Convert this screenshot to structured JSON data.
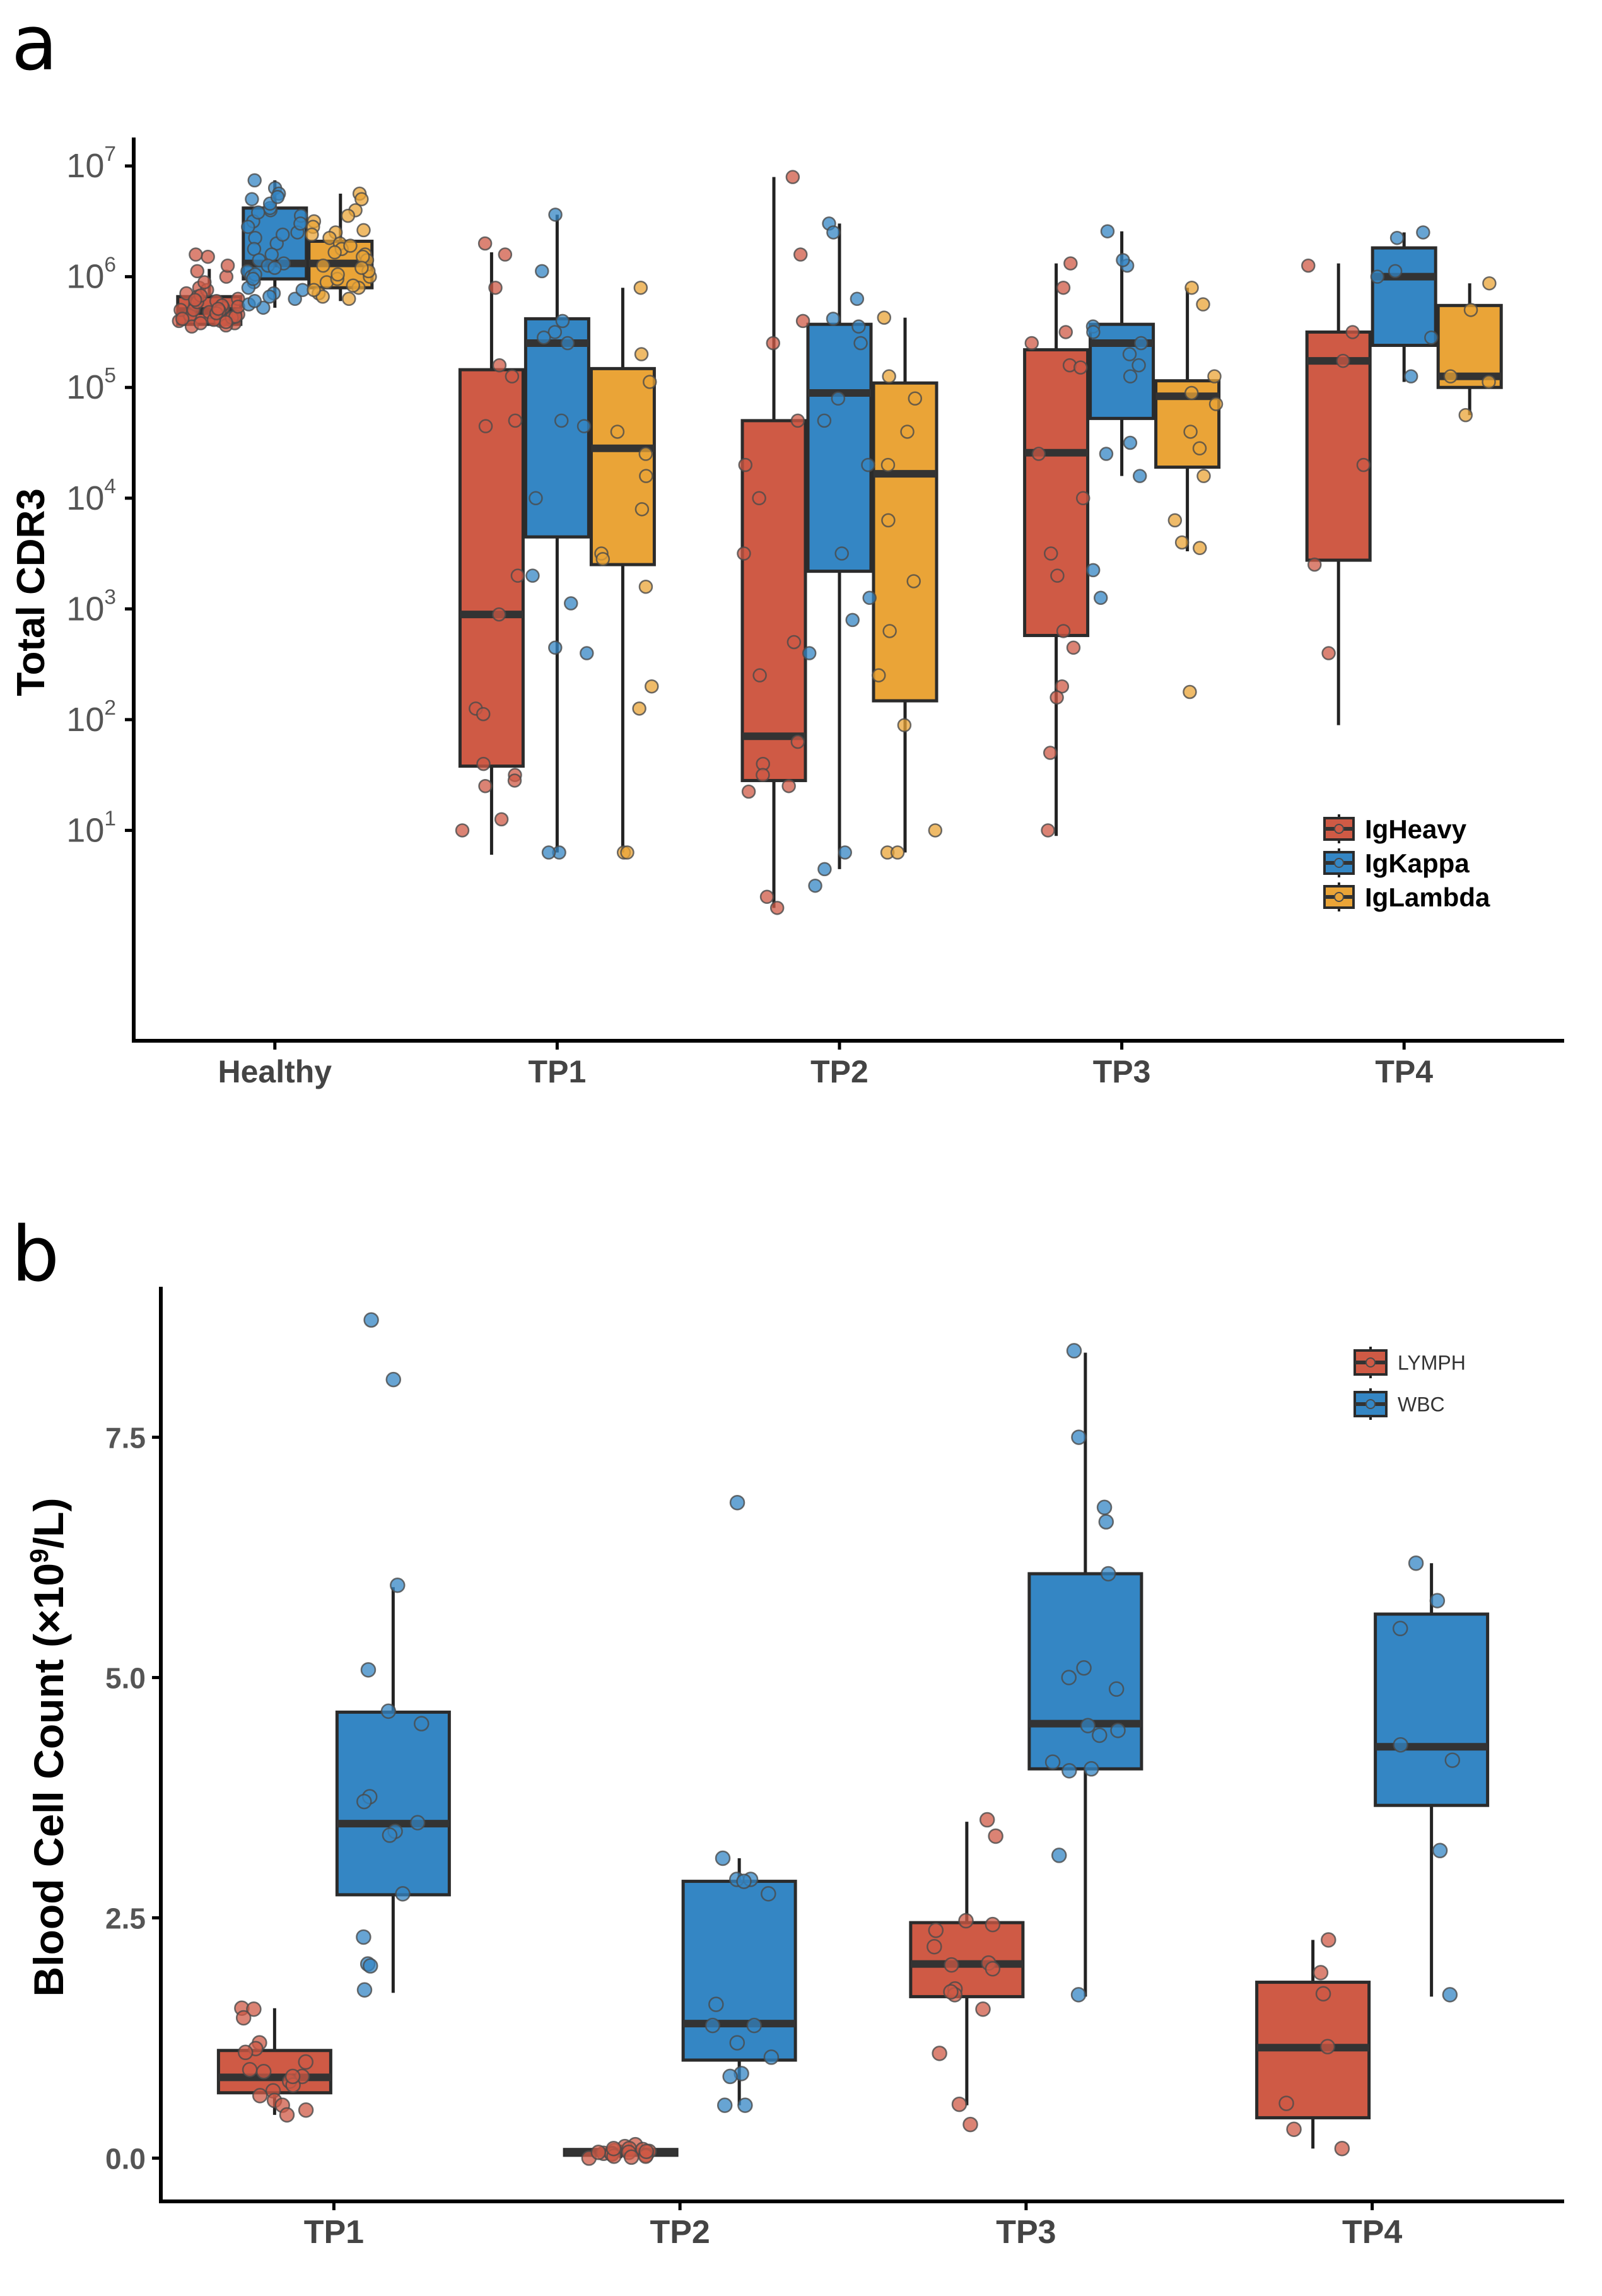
{
  "panels": {
    "a": "a",
    "b": "b"
  },
  "colors": {
    "heavy": "#cf5a45",
    "kappa": "#3486c4",
    "lambda": "#eaa437",
    "lymph": "#cf5a45",
    "wbc": "#3486c4",
    "median": "#333333",
    "axis": "#000000"
  },
  "chart_data": [
    {
      "type": "box",
      "scale": "log10",
      "ylabel": "Total CDR3",
      "xlabel": "",
      "categories": [
        "Healthy",
        "TP1",
        "TP2",
        "TP3",
        "TP4"
      ],
      "yticks": [
        {
          "exp": 1,
          "base": "10",
          "sup": "1"
        },
        {
          "exp": 2,
          "base": "10",
          "sup": "2"
        },
        {
          "exp": 3,
          "base": "10",
          "sup": "3"
        },
        {
          "exp": 4,
          "base": "10",
          "sup": "4"
        },
        {
          "exp": 5,
          "base": "10",
          "sup": "5"
        },
        {
          "exp": 6,
          "base": "10",
          "sup": "6"
        },
        {
          "exp": 7,
          "base": "10",
          "sup": "7"
        }
      ],
      "ylim_exp": [
        -0.9,
        7.2
      ],
      "legend": {
        "position": "right",
        "entries": [
          "IgHeavy",
          "IgKappa",
          "IgLambda"
        ]
      },
      "series": [
        {
          "name": "IgHeavy",
          "color_key": "heavy",
          "boxes": [
            {
              "q1": 5.57,
              "median": 5.69,
              "q3": 5.82,
              "lo": 5.56,
              "hi": 6.07
            },
            {
              "q1": 1.58,
              "median": 2.95,
              "q3": 5.16,
              "lo": 0.78,
              "hi": 6.22
            },
            {
              "q1": 1.45,
              "median": 1.85,
              "q3": 4.7,
              "lo": 0.3,
              "hi": 6.9
            },
            {
              "q1": 2.76,
              "median": 4.41,
              "q3": 5.34,
              "lo": 0.95,
              "hi": 6.12
            },
            {
              "q1": 3.44,
              "median": 5.24,
              "q3": 5.5,
              "lo": 1.95,
              "hi": 6.12
            }
          ],
          "points": [
            [
              5.6,
              5.65,
              5.7,
              5.75,
              5.55,
              5.62,
              5.8,
              5.85,
              5.9,
              5.58,
              5.72,
              6.0,
              6.18,
              6.2,
              5.68,
              5.78,
              5.66,
              5.6,
              5.56,
              5.63,
              5.7,
              5.74,
              5.82,
              5.88,
              5.95,
              6.05,
              5.58,
              5.64,
              5.69,
              5.73,
              5.77,
              5.83,
              5.59,
              5.61,
              5.67,
              5.71,
              5.79,
              6.1
            ],
            [
              6.2,
              5.9,
              5.2,
              5.1,
              4.65,
              3.3,
              2.95,
              2.1,
              2.05,
              1.6,
              1.5,
              1.45,
              1.4,
              1.1,
              1.0,
              6.3,
              4.7
            ],
            [
              6.9,
              6.2,
              5.4,
              4.7,
              4.3,
              3.5,
              2.7,
              2.4,
              1.8,
              1.6,
              1.5,
              1.4,
              1.35,
              0.4,
              0.3,
              4.0,
              5.6
            ],
            [
              6.12,
              5.9,
              5.5,
              5.2,
              5.4,
              4.4,
              4.0,
              3.5,
              3.3,
              2.8,
              2.65,
              2.3,
              2.2,
              1.7,
              1.0,
              5.18
            ],
            [
              6.1,
              5.5,
              5.24,
              4.3,
              3.4,
              2.6
            ]
          ]
        },
        {
          "name": "IgKappa",
          "color_key": "kappa",
          "boxes": [
            {
              "q1": 5.98,
              "median": 6.12,
              "q3": 6.62,
              "lo": 5.72,
              "hi": 6.87
            },
            {
              "q1": 3.65,
              "median": 5.4,
              "q3": 5.62,
              "lo": 0.8,
              "hi": 6.56
            },
            {
              "q1": 3.34,
              "median": 4.95,
              "q3": 5.57,
              "lo": 0.65,
              "hi": 6.48
            },
            {
              "q1": 4.72,
              "median": 5.4,
              "q3": 5.57,
              "lo": 4.2,
              "hi": 6.41
            },
            {
              "q1": 5.38,
              "median": 6.0,
              "q3": 6.26,
              "lo": 5.05,
              "hi": 6.4
            }
          ],
          "points": [
            [
              6.87,
              6.8,
              6.75,
              6.7,
              6.6,
              6.55,
              6.5,
              6.45,
              6.4,
              6.3,
              6.2,
              6.12,
              6.05,
              6.0,
              5.95,
              5.9,
              5.85,
              5.8,
              5.75,
              5.72,
              6.62,
              6.66,
              6.58,
              6.35,
              6.25,
              6.15,
              6.1,
              6.08,
              6.02,
              5.98,
              5.88,
              5.82,
              5.78,
              6.72,
              6.48,
              6.38
            ],
            [
              6.56,
              6.05,
              5.5,
              5.4,
              4.7,
              4.65,
              4.0,
              3.3,
              3.05,
              2.65,
              2.6,
              0.8,
              0.8,
              5.45,
              5.6
            ],
            [
              6.48,
              6.4,
              5.8,
              5.55,
              5.4,
              4.9,
              4.7,
              4.3,
              3.5,
              3.1,
              2.9,
              2.6,
              0.8,
              0.65,
              0.5,
              5.62
            ],
            [
              6.41,
              6.1,
              5.55,
              5.5,
              5.4,
              5.3,
              5.2,
              4.5,
              4.4,
              4.2,
              3.35,
              3.1,
              6.15,
              5.1
            ],
            [
              6.4,
              6.35,
              6.0,
              5.45,
              5.1,
              6.05
            ]
          ]
        },
        {
          "name": "IgLambda",
          "color_key": "lambda",
          "boxes": [
            {
              "q1": 5.9,
              "median": 6.12,
              "q3": 6.32,
              "lo": 5.78,
              "hi": 6.75
            },
            {
              "q1": 3.4,
              "median": 4.45,
              "q3": 5.17,
              "lo": 0.8,
              "hi": 5.9
            },
            {
              "q1": 2.17,
              "median": 4.22,
              "q3": 5.04,
              "lo": 0.8,
              "hi": 5.63
            },
            {
              "q1": 4.28,
              "median": 4.92,
              "q3": 5.06,
              "lo": 3.52,
              "hi": 5.9
            },
            {
              "q1": 5.0,
              "median": 5.1,
              "q3": 5.74,
              "lo": 4.75,
              "hi": 5.94
            }
          ],
          "points": [
            [
              6.75,
              6.7,
              6.6,
              6.5,
              6.4,
              6.35,
              6.3,
              6.2,
              6.1,
              6.0,
              5.95,
              5.9,
              5.85,
              5.8,
              6.45,
              6.25,
              6.15,
              6.05,
              5.98,
              5.92,
              5.82,
              6.55,
              6.38,
              6.28,
              6.18,
              6.08,
              6.02,
              5.88,
              6.42,
              6.22
            ],
            [
              5.9,
              5.3,
              5.05,
              4.6,
              4.4,
              4.2,
              3.9,
              3.5,
              3.45,
              3.2,
              2.3,
              2.1,
              0.8,
              0.8
            ],
            [
              5.63,
              5.1,
              4.9,
              4.6,
              4.3,
              3.8,
              3.25,
              2.8,
              2.4,
              1.95,
              1.0,
              0.8,
              0.8
            ],
            [
              5.9,
              5.75,
              5.1,
              4.95,
              4.6,
              4.45,
              4.2,
              3.8,
              3.6,
              3.55,
              2.25,
              4.85
            ],
            [
              5.94,
              5.7,
              5.1,
              5.05,
              4.75
            ]
          ]
        }
      ]
    },
    {
      "type": "box",
      "scale": "linear",
      "ylabel": "Blood Cell Count (×10⁹/L)",
      "ylabel_parts": {
        "pre": "Blood Cell Count (×10",
        "sup": "9",
        "post": "/L)"
      },
      "xlabel": "",
      "categories": [
        "TP1",
        "TP2",
        "TP3",
        "TP4"
      ],
      "yticks": [
        {
          "value": 0.0,
          "label": "0.0"
        },
        {
          "value": 2.5,
          "label": "2.5"
        },
        {
          "value": 5.0,
          "label": "5.0"
        },
        {
          "value": 7.5,
          "label": "7.5"
        }
      ],
      "ylim": [
        -0.45,
        9.0
      ],
      "legend": {
        "position": "top-right",
        "entries": [
          "LYMPH",
          "WBC"
        ]
      },
      "series": [
        {
          "name": "LYMPH",
          "color_key": "lymph",
          "boxes": [
            {
              "q1": 0.68,
              "median": 0.84,
              "q3": 1.12,
              "lo": 0.45,
              "hi": 1.56
            },
            {
              "q1": 0.03,
              "median": 0.06,
              "q3": 0.09,
              "lo": 0.0,
              "hi": 0.14
            },
            {
              "q1": 1.68,
              "median": 2.02,
              "q3": 2.45,
              "lo": 0.55,
              "hi": 3.5
            },
            {
              "q1": 0.42,
              "median": 1.15,
              "q3": 1.83,
              "lo": 0.1,
              "hi": 2.27
            }
          ],
          "points": [
            [
              1.56,
              1.55,
              1.46,
              1.2,
              1.14,
              1.1,
              1.0,
              0.92,
              0.9,
              0.85,
              0.8,
              0.76,
              0.7,
              0.65,
              0.6,
              0.55,
              0.5,
              0.45,
              0.85
            ],
            [
              0.14,
              0.12,
              0.1,
              0.09,
              0.08,
              0.07,
              0.06,
              0.05,
              0.05,
              0.04,
              0.03,
              0.02,
              0.02,
              0.01,
              0.0,
              0.1,
              0.07,
              0.06
            ],
            [
              3.52,
              3.35,
              2.47,
              2.43,
              2.37,
              2.2,
              2.03,
              2.01,
              1.97,
              1.76,
              1.7,
              1.55,
              1.09,
              0.56,
              0.35,
              1.73
            ],
            [
              2.27,
              1.93,
              1.71,
              1.16,
              0.57,
              0.3,
              0.1
            ]
          ]
        },
        {
          "name": "WBC",
          "color_key": "wbc",
          "boxes": [
            {
              "q1": 2.74,
              "median": 3.48,
              "q3": 4.64,
              "lo": 1.72,
              "hi": 5.94
            },
            {
              "q1": 1.02,
              "median": 1.4,
              "q3": 2.88,
              "lo": 0.55,
              "hi": 3.12
            },
            {
              "q1": 4.05,
              "median": 4.52,
              "q3": 6.08,
              "lo": 1.68,
              "hi": 8.38
            },
            {
              "q1": 3.67,
              "median": 4.28,
              "q3": 5.66,
              "lo": 1.68,
              "hi": 6.19
            }
          ],
          "points": [
            [
              8.72,
              8.1,
              5.96,
              5.08,
              4.65,
              4.52,
              3.76,
              3.71,
              3.49,
              3.4,
              3.36,
              2.75,
              2.3,
              2.02,
              2.0,
              1.75
            ],
            [
              6.82,
              3.12,
              2.9,
              2.9,
              2.88,
              2.75,
              1.6,
              1.38,
              1.38,
              1.2,
              1.05,
              0.88,
              0.85,
              0.55,
              0.55
            ],
            [
              8.4,
              7.5,
              6.77,
              6.62,
              6.08,
              5.1,
              5.0,
              4.88,
              4.5,
              4.45,
              4.4,
              4.12,
              4.05,
              4.03,
              3.15,
              1.7
            ],
            [
              6.19,
              5.8,
              5.51,
              4.3,
              4.14,
              3.2,
              1.7
            ]
          ]
        }
      ]
    }
  ]
}
